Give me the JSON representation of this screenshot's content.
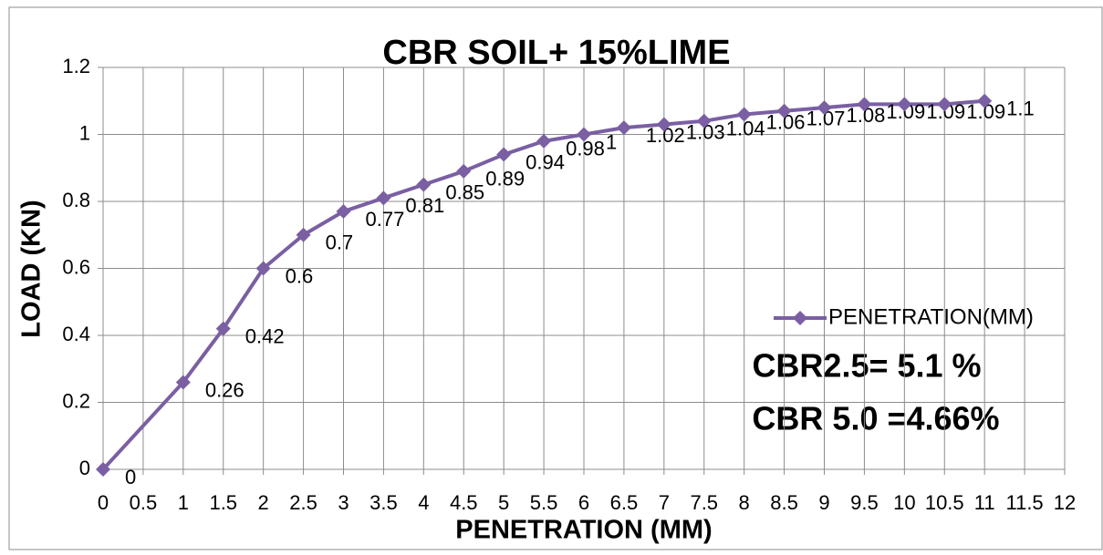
{
  "chart_data": {
    "type": "line",
    "title": "CBR SOIL+ 15%LIME",
    "x_label": "PENETRATION (MM)",
    "y_label": "LOAD (KN)",
    "annotations": [
      "CBR2.5=  5.1  %",
      "CBR 5.0 =4.66%"
    ],
    "x": [
      0,
      1,
      1.5,
      2,
      2.5,
      3,
      3.5,
      4,
      4.5,
      5,
      5.5,
      6,
      6.5,
      7,
      7.5,
      8,
      8.5,
      9,
      9.5,
      10,
      10.5,
      11
    ],
    "series": [
      {
        "name": "PENETRATION(MM)",
        "color": "#7a5fa3",
        "values": [
          0,
          0.26,
          0.42,
          0.6,
          0.7,
          0.77,
          0.81,
          0.85,
          0.89,
          0.94,
          0.98,
          1,
          1.02,
          1.03,
          1.04,
          1.06,
          1.07,
          1.08,
          1.09,
          1.09,
          1.09,
          1.1
        ]
      }
    ],
    "xlim": [
      0,
      12
    ],
    "xticks": [
      0,
      0.5,
      1,
      1.5,
      2,
      2.5,
      3,
      3.5,
      4,
      4.5,
      5,
      5.5,
      6,
      6.5,
      7,
      7.5,
      8,
      8.5,
      9,
      9.5,
      10,
      10.5,
      11,
      11.5,
      12
    ],
    "ylim": [
      0,
      1.2
    ],
    "yticks": [
      0,
      0.2,
      0.4,
      0.6,
      0.8,
      1,
      1.2
    ],
    "grid": true,
    "legend": "right"
  }
}
